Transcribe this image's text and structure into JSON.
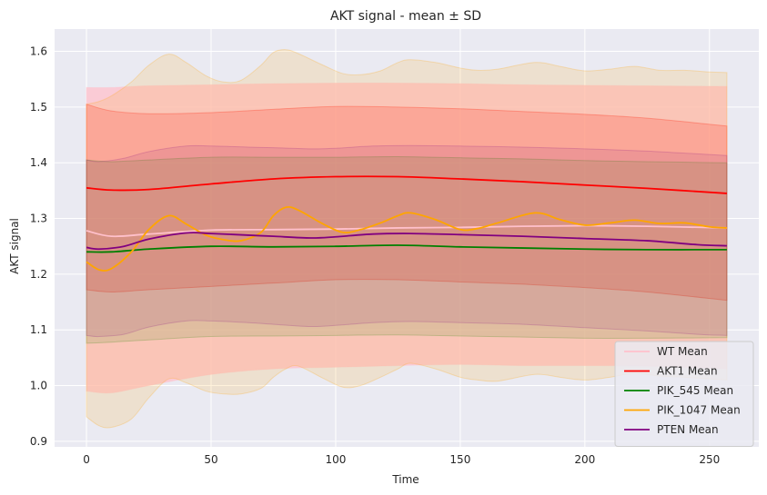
{
  "chart_data": {
    "type": "line",
    "title": "AKT signal - mean ± SD",
    "xlabel": "Time",
    "ylabel": "AKT signal",
    "xlim": [
      -12.8,
      269.8
    ],
    "ylim": [
      0.89,
      1.64
    ],
    "xticks": [
      0,
      50,
      100,
      150,
      200,
      250
    ],
    "yticks": [
      0.9,
      1.0,
      1.1,
      1.2,
      1.3,
      1.4,
      1.5,
      1.6
    ],
    "grid": true,
    "legend_position": "lower-right",
    "background": "#eaeaf2",
    "series": [
      {
        "name": "WT Mean",
        "color": "#ffc0cb",
        "band_alpha": 0.75,
        "x": [
          0,
          10,
          25,
          50,
          75,
          100,
          125,
          150,
          175,
          200,
          225,
          257
        ],
        "mean": [
          1.278,
          1.268,
          1.272,
          1.279,
          1.28,
          1.281,
          1.283,
          1.284,
          1.286,
          1.287,
          1.286,
          1.283
        ],
        "upper": [
          1.535,
          1.535,
          1.538,
          1.54,
          1.542,
          1.543,
          1.543,
          1.542,
          1.54,
          1.539,
          1.538,
          1.537
        ],
        "lower": [
          0.99,
          0.987,
          1.0,
          1.02,
          1.03,
          1.033,
          1.036,
          1.038,
          1.036,
          1.036,
          1.035,
          1.03
        ]
      },
      {
        "name": "AKT1 Mean",
        "color": "#ff0000",
        "band_alpha": 0.17,
        "x": [
          0,
          10,
          25,
          50,
          75,
          100,
          125,
          150,
          175,
          200,
          225,
          257
        ],
        "mean": [
          1.355,
          1.351,
          1.352,
          1.362,
          1.371,
          1.375,
          1.375,
          1.371,
          1.366,
          1.36,
          1.354,
          1.345
        ],
        "upper": [
          1.505,
          1.493,
          1.488,
          1.49,
          1.496,
          1.501,
          1.5,
          1.497,
          1.492,
          1.487,
          1.48,
          1.466
        ],
        "lower": [
          1.172,
          1.168,
          1.172,
          1.178,
          1.184,
          1.19,
          1.19,
          1.186,
          1.182,
          1.176,
          1.168,
          1.153
        ]
      },
      {
        "name": "PIK_545 Mean",
        "color": "#008000",
        "band_alpha": 0.12,
        "x": [
          0,
          10,
          25,
          50,
          75,
          100,
          125,
          150,
          175,
          200,
          225,
          257
        ],
        "mean": [
          1.24,
          1.24,
          1.245,
          1.25,
          1.249,
          1.25,
          1.252,
          1.249,
          1.247,
          1.245,
          1.244,
          1.244
        ],
        "upper": [
          1.405,
          1.402,
          1.405,
          1.41,
          1.41,
          1.41,
          1.411,
          1.409,
          1.407,
          1.404,
          1.402,
          1.4
        ],
        "lower": [
          1.076,
          1.078,
          1.082,
          1.088,
          1.089,
          1.09,
          1.091,
          1.089,
          1.087,
          1.085,
          1.085,
          1.086
        ]
      },
      {
        "name": "PIK_1047 Mean",
        "color": "#ffa500",
        "band_alpha": 0.14,
        "x": [
          0,
          5,
          10,
          18,
          25,
          33,
          40,
          48,
          55,
          62,
          70,
          75,
          80,
          85,
          95,
          103,
          110,
          118,
          125,
          130,
          140,
          150,
          157,
          165,
          180,
          190,
          200,
          210,
          220,
          230,
          240,
          250,
          257
        ],
        "mean": [
          1.222,
          1.208,
          1.21,
          1.24,
          1.28,
          1.305,
          1.29,
          1.27,
          1.262,
          1.26,
          1.275,
          1.305,
          1.32,
          1.315,
          1.29,
          1.275,
          1.28,
          1.292,
          1.305,
          1.31,
          1.298,
          1.28,
          1.282,
          1.292,
          1.31,
          1.298,
          1.288,
          1.292,
          1.297,
          1.291,
          1.292,
          1.285,
          1.283
        ],
        "upper": [
          1.505,
          1.51,
          1.52,
          1.545,
          1.575,
          1.595,
          1.58,
          1.556,
          1.545,
          1.548,
          1.575,
          1.598,
          1.603,
          1.596,
          1.575,
          1.56,
          1.558,
          1.565,
          1.58,
          1.585,
          1.58,
          1.57,
          1.566,
          1.568,
          1.58,
          1.573,
          1.565,
          1.568,
          1.573,
          1.566,
          1.566,
          1.563,
          1.562
        ],
        "lower": [
          0.944,
          0.928,
          0.925,
          0.94,
          0.978,
          1.012,
          1.005,
          0.99,
          0.985,
          0.985,
          0.995,
          1.015,
          1.03,
          1.035,
          1.013,
          0.997,
          1.0,
          1.015,
          1.03,
          1.04,
          1.03,
          1.015,
          1.01,
          1.008,
          1.02,
          1.015,
          1.01,
          1.015,
          1.022,
          1.017,
          1.015,
          1.012,
          1.01
        ]
      },
      {
        "name": "PTEN Mean",
        "color": "#800080",
        "band_alpha": 0.1,
        "x": [
          0,
          5,
          15,
          25,
          40,
          50,
          65,
          75,
          90,
          100,
          115,
          130,
          150,
          175,
          200,
          225,
          245,
          257
        ],
        "mean": [
          1.248,
          1.245,
          1.25,
          1.263,
          1.274,
          1.273,
          1.27,
          1.268,
          1.265,
          1.267,
          1.272,
          1.273,
          1.271,
          1.268,
          1.264,
          1.26,
          1.253,
          1.251
        ],
        "upper": [
          1.405,
          1.402,
          1.408,
          1.42,
          1.43,
          1.43,
          1.428,
          1.427,
          1.425,
          1.426,
          1.43,
          1.431,
          1.43,
          1.428,
          1.425,
          1.421,
          1.416,
          1.413
        ],
        "lower": [
          1.09,
          1.088,
          1.092,
          1.105,
          1.116,
          1.116,
          1.113,
          1.11,
          1.106,
          1.108,
          1.113,
          1.115,
          1.113,
          1.11,
          1.104,
          1.098,
          1.092,
          1.09
        ]
      }
    ]
  }
}
